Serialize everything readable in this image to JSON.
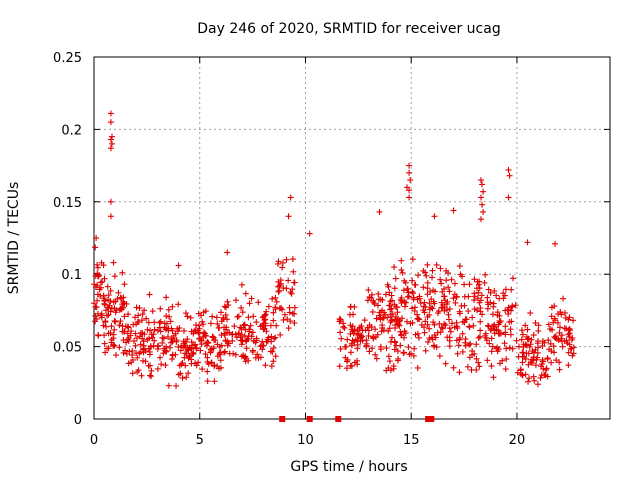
{
  "chart_data": {
    "type": "scatter",
    "title": "Day 246 of 2020, SRMTID for receiver ucag",
    "xlabel": "GPS time / hours",
    "ylabel": "SRMTID / TECUs",
    "xlim": [
      0,
      24.4
    ],
    "ylim": [
      0,
      0.25
    ],
    "xticks": [
      0,
      5,
      10,
      15,
      20
    ],
    "xtick_labels": [
      "0",
      "5",
      "10",
      "15",
      "20"
    ],
    "yticks": [
      0,
      0.05,
      0.1,
      0.15,
      0.2,
      0.25
    ],
    "ytick_labels": [
      "0",
      "0.05",
      "0.1",
      "0.15",
      "0.2",
      "0.25"
    ],
    "grid": true,
    "marker_color": "#e00000",
    "series": [
      {
        "name": "SRMTID",
        "marker": "+",
        "clusters": [
          {
            "x_range": [
              0.0,
              0.5
            ],
            "y_center": 0.085,
            "y_spread": 0.02,
            "count": 40
          },
          {
            "x_range": [
              0.5,
              1.5
            ],
            "y_center": 0.07,
            "y_spread": 0.022,
            "count": 70
          },
          {
            "x_range": [
              1.5,
              4.0
            ],
            "y_center": 0.055,
            "y_spread": 0.018,
            "count": 140
          },
          {
            "x_range": [
              4.0,
              6.0
            ],
            "y_center": 0.05,
            "y_spread": 0.017,
            "count": 120
          },
          {
            "x_range": [
              6.0,
              8.6
            ],
            "y_center": 0.06,
            "y_spread": 0.018,
            "count": 140
          },
          {
            "x_range": [
              8.6,
              9.5
            ],
            "y_center": 0.085,
            "y_spread": 0.02,
            "count": 40
          },
          {
            "x_range": [
              11.6,
              12.8
            ],
            "y_center": 0.055,
            "y_spread": 0.018,
            "count": 60
          },
          {
            "x_range": [
              12.8,
              14.5
            ],
            "y_center": 0.068,
            "y_spread": 0.022,
            "count": 110
          },
          {
            "x_range": [
              14.5,
              16.5
            ],
            "y_center": 0.075,
            "y_spread": 0.025,
            "count": 120
          },
          {
            "x_range": [
              16.5,
              18.5
            ],
            "y_center": 0.07,
            "y_spread": 0.025,
            "count": 110
          },
          {
            "x_range": [
              18.5,
              20.0
            ],
            "y_center": 0.065,
            "y_spread": 0.022,
            "count": 80
          },
          {
            "x_range": [
              20.0,
              21.5
            ],
            "y_center": 0.045,
            "y_spread": 0.018,
            "count": 80
          },
          {
            "x_range": [
              21.5,
              22.7
            ],
            "y_center": 0.058,
            "y_spread": 0.015,
            "count": 60
          }
        ],
        "outliers": [
          {
            "x": 0.8,
            "y": 0.211
          },
          {
            "x": 0.8,
            "y": 0.205
          },
          {
            "x": 0.85,
            "y": 0.195
          },
          {
            "x": 0.8,
            "y": 0.193
          },
          {
            "x": 0.85,
            "y": 0.19
          },
          {
            "x": 0.8,
            "y": 0.187
          },
          {
            "x": 0.8,
            "y": 0.15
          },
          {
            "x": 0.8,
            "y": 0.14
          },
          {
            "x": 0.1,
            "y": 0.125
          },
          {
            "x": 9.3,
            "y": 0.153
          },
          {
            "x": 9.2,
            "y": 0.14
          },
          {
            "x": 10.2,
            "y": 0.128
          },
          {
            "x": 14.9,
            "y": 0.175
          },
          {
            "x": 14.9,
            "y": 0.17
          },
          {
            "x": 14.95,
            "y": 0.165
          },
          {
            "x": 14.9,
            "y": 0.158
          },
          {
            "x": 14.9,
            "y": 0.153
          },
          {
            "x": 14.8,
            "y": 0.16
          },
          {
            "x": 18.3,
            "y": 0.165
          },
          {
            "x": 18.35,
            "y": 0.162
          },
          {
            "x": 18.4,
            "y": 0.157
          },
          {
            "x": 18.3,
            "y": 0.153
          },
          {
            "x": 18.35,
            "y": 0.148
          },
          {
            "x": 18.4,
            "y": 0.143
          },
          {
            "x": 18.3,
            "y": 0.138
          },
          {
            "x": 19.6,
            "y": 0.172
          },
          {
            "x": 19.65,
            "y": 0.168
          },
          {
            "x": 19.6,
            "y": 0.153
          },
          {
            "x": 17.0,
            "y": 0.144
          },
          {
            "x": 13.5,
            "y": 0.143
          },
          {
            "x": 16.1,
            "y": 0.14
          },
          {
            "x": 20.5,
            "y": 0.122
          },
          {
            "x": 4.0,
            "y": 0.106
          },
          {
            "x": 6.3,
            "y": 0.115
          },
          {
            "x": 21.8,
            "y": 0.121
          }
        ],
        "zero_markers": [
          8.9,
          10.2,
          11.55,
          15.8,
          15.95
        ]
      }
    ]
  }
}
